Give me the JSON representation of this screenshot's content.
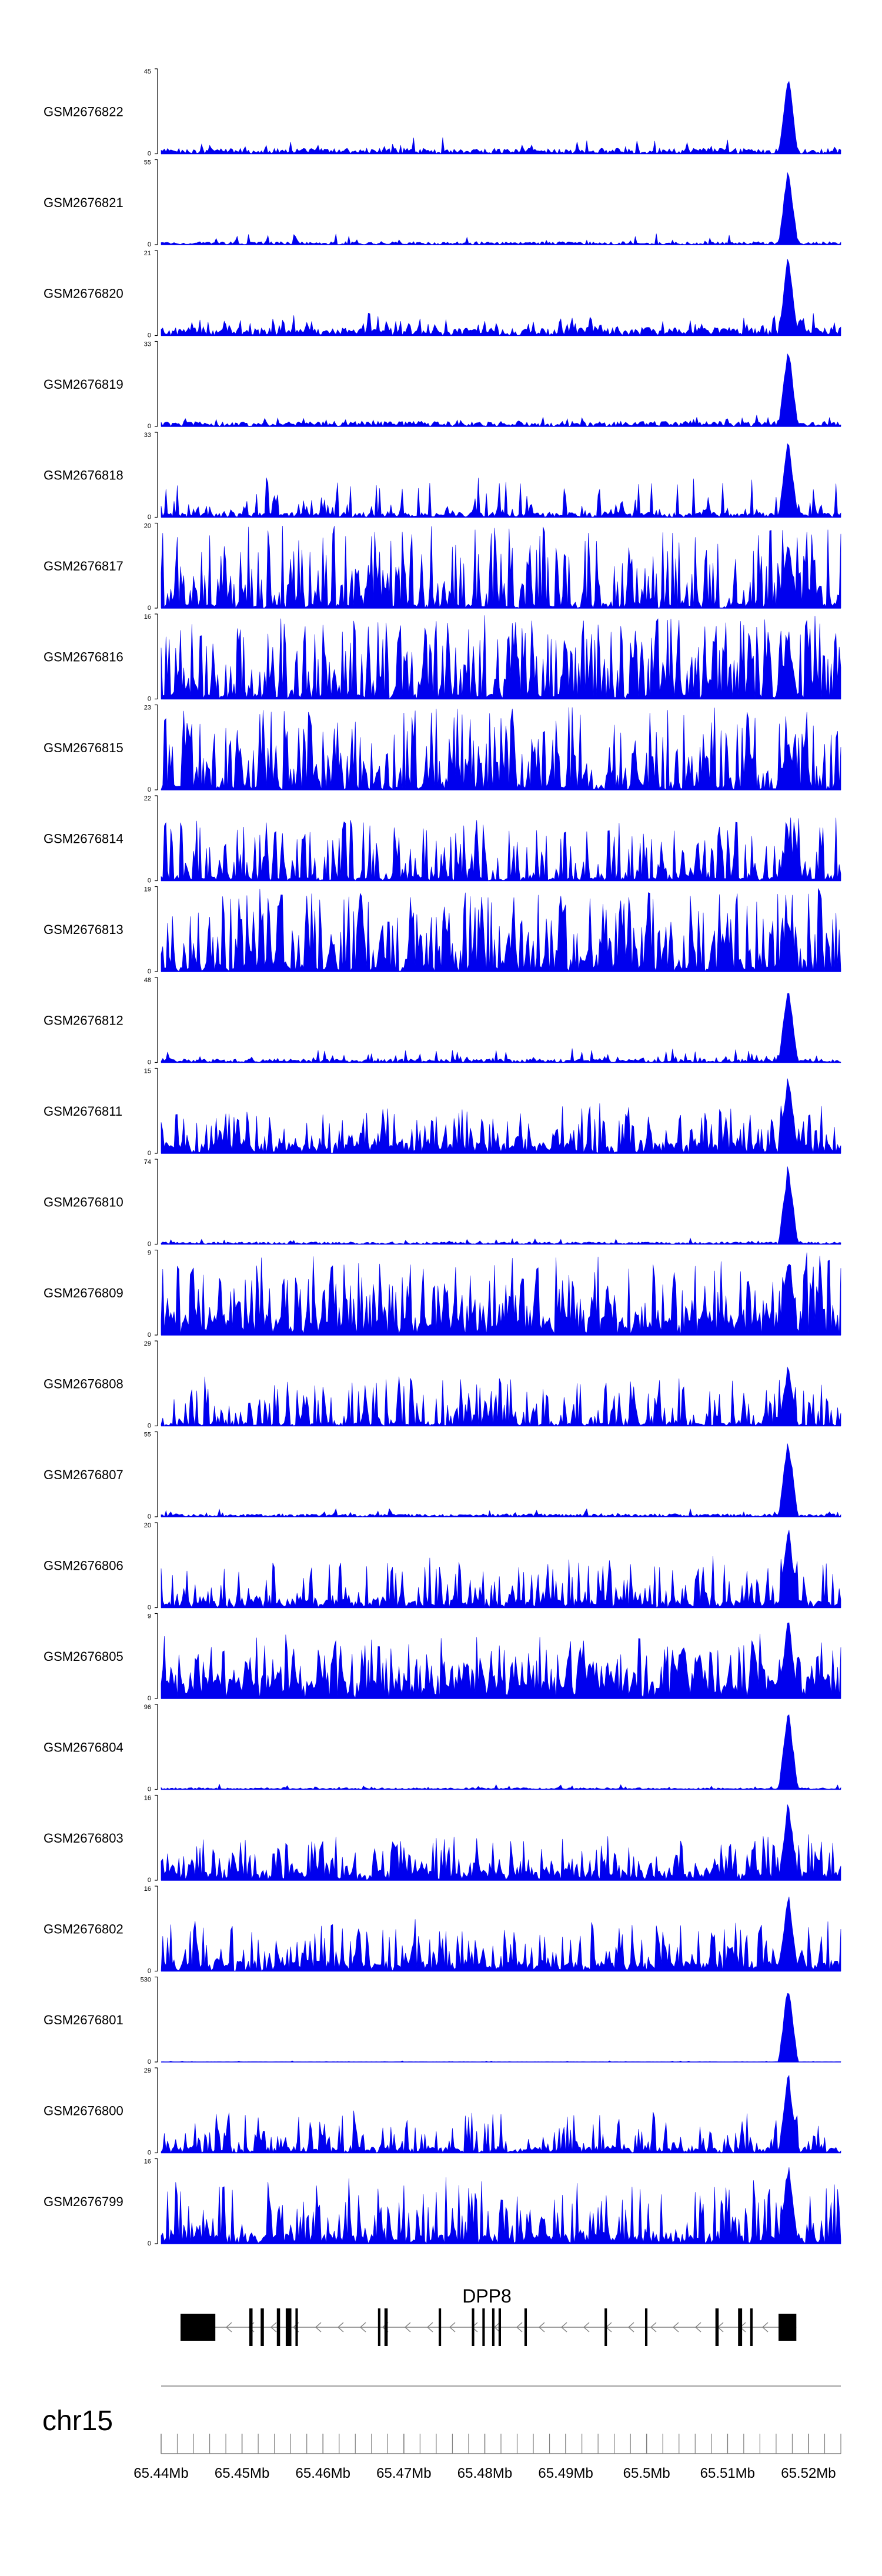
{
  "chart_data": {
    "type": "area",
    "subtype": "genome-browser-coverage-tracks",
    "series_color": "#0000ee",
    "chromosome": "chr15",
    "x_range_mb": [
      65.44,
      65.524
    ],
    "x_ticks": [
      {
        "value": 65.44,
        "label": "65.44Mb"
      },
      {
        "value": 65.45,
        "label": "65.45Mb"
      },
      {
        "value": 65.46,
        "label": "65.46Mb"
      },
      {
        "value": 65.47,
        "label": "65.47Mb"
      },
      {
        "value": 65.48,
        "label": "65.48Mb"
      },
      {
        "value": 65.49,
        "label": "65.49Mb"
      },
      {
        "value": 65.5,
        "label": "65.5Mb"
      },
      {
        "value": 65.51,
        "label": "65.51Mb"
      },
      {
        "value": 65.52,
        "label": "65.52Mb"
      }
    ],
    "peak_position_mb": 65.5175,
    "tracks": [
      {
        "name": "GSM2676822",
        "ymin": 0,
        "ymax": 45,
        "baseline": 3,
        "noise": 6,
        "spikiness": 0.1,
        "peak": 45
      },
      {
        "name": "GSM2676821",
        "ymin": 0,
        "ymax": 55,
        "baseline": 2,
        "noise": 6,
        "spikiness": 0.08,
        "peak": 55
      },
      {
        "name": "GSM2676820",
        "ymin": 0,
        "ymax": 21,
        "baseline": 2,
        "noise": 4,
        "spikiness": 0.25,
        "peak": 21
      },
      {
        "name": "GSM2676819",
        "ymin": 0,
        "ymax": 33,
        "baseline": 2,
        "noise": 3,
        "spikiness": 0.1,
        "peak": 33
      },
      {
        "name": "GSM2676818",
        "ymin": 0,
        "ymax": 33,
        "baseline": 2,
        "noise": 14,
        "spikiness": 0.3,
        "peak": 33
      },
      {
        "name": "GSM2676817",
        "ymin": 0,
        "ymax": 20,
        "baseline": 1,
        "noise": 19,
        "spikiness": 0.7,
        "peak": 16
      },
      {
        "name": "GSM2676816",
        "ymin": 0,
        "ymax": 16,
        "baseline": 1,
        "noise": 15,
        "spikiness": 0.8,
        "peak": 12
      },
      {
        "name": "GSM2676815",
        "ymin": 0,
        "ymax": 23,
        "baseline": 1,
        "noise": 22,
        "spikiness": 0.8,
        "peak": 14
      },
      {
        "name": "GSM2676814",
        "ymin": 0,
        "ymax": 22,
        "baseline": 1,
        "noise": 16,
        "spikiness": 0.6,
        "peak": 12
      },
      {
        "name": "GSM2676813",
        "ymin": 0,
        "ymax": 19,
        "baseline": 1,
        "noise": 18,
        "spikiness": 0.8,
        "peak": 12
      },
      {
        "name": "GSM2676812",
        "ymin": 0,
        "ymax": 48,
        "baseline": 2,
        "noise": 7,
        "spikiness": 0.15,
        "peak": 48
      },
      {
        "name": "GSM2676811",
        "ymin": 0,
        "ymax": 15,
        "baseline": 2,
        "noise": 7,
        "spikiness": 0.55,
        "peak": 15
      },
      {
        "name": "GSM2676810",
        "ymin": 0,
        "ymax": 74,
        "baseline": 2,
        "noise": 4,
        "spikiness": 0.1,
        "peak": 74
      },
      {
        "name": "GSM2676809",
        "ymin": 0,
        "ymax": 9,
        "baseline": 2,
        "noise": 7,
        "spikiness": 0.7,
        "peak": 9
      },
      {
        "name": "GSM2676808",
        "ymin": 0,
        "ymax": 29,
        "baseline": 1,
        "noise": 16,
        "spikiness": 0.6,
        "peak": 22
      },
      {
        "name": "GSM2676807",
        "ymin": 0,
        "ymax": 55,
        "baseline": 2,
        "noise": 4,
        "spikiness": 0.12,
        "peak": 55
      },
      {
        "name": "GSM2676806",
        "ymin": 0,
        "ymax": 20,
        "baseline": 2,
        "noise": 11,
        "spikiness": 0.55,
        "peak": 20
      },
      {
        "name": "GSM2676805",
        "ymin": 0,
        "ymax": 9,
        "baseline": 2,
        "noise": 5,
        "spikiness": 0.8,
        "peak": 9
      },
      {
        "name": "GSM2676804",
        "ymin": 0,
        "ymax": 96,
        "baseline": 2,
        "noise": 4,
        "spikiness": 0.1,
        "peak": 96
      },
      {
        "name": "GSM2676803",
        "ymin": 0,
        "ymax": 16,
        "baseline": 2,
        "noise": 7,
        "spikiness": 0.55,
        "peak": 16
      },
      {
        "name": "GSM2676802",
        "ymin": 0,
        "ymax": 16,
        "baseline": 2,
        "noise": 8,
        "spikiness": 0.55,
        "peak": 16
      },
      {
        "name": "GSM2676801",
        "ymin": 0,
        "ymax": 530,
        "baseline": 2,
        "noise": 6,
        "spikiness": 0.1,
        "peak": 530
      },
      {
        "name": "GSM2676800",
        "ymin": 0,
        "ymax": 29,
        "baseline": 2,
        "noise": 13,
        "spikiness": 0.45,
        "peak": 29
      },
      {
        "name": "GSM2676799",
        "ymin": 0,
        "ymax": 16,
        "baseline": 2,
        "noise": 11,
        "spikiness": 0.55,
        "peak": 16
      }
    ],
    "gene": {
      "name": "DPP8",
      "strand": "-",
      "start_mb": 65.4424,
      "end_mb": 65.5185,
      "exons_mb": [
        [
          65.4424,
          65.4467
        ],
        [
          65.4509,
          65.4513
        ],
        [
          65.4523,
          65.4527
        ],
        [
          65.4543,
          65.4547
        ],
        [
          65.4554,
          65.4561
        ],
        [
          65.4566,
          65.4569
        ],
        [
          65.4668,
          65.4671
        ],
        [
          65.4676,
          65.468
        ],
        [
          65.4743,
          65.4746
        ],
        [
          65.4784,
          65.4787
        ],
        [
          65.4797,
          65.48
        ],
        [
          65.4809,
          65.4812
        ],
        [
          65.4817,
          65.482
        ],
        [
          65.4849,
          65.4852
        ],
        [
          65.4948,
          65.4951
        ],
        [
          65.4998,
          65.5001
        ],
        [
          65.5085,
          65.5089
        ],
        [
          65.5113,
          65.5118
        ],
        [
          65.5128,
          65.5131
        ],
        [
          65.5163,
          65.5185
        ]
      ]
    }
  }
}
